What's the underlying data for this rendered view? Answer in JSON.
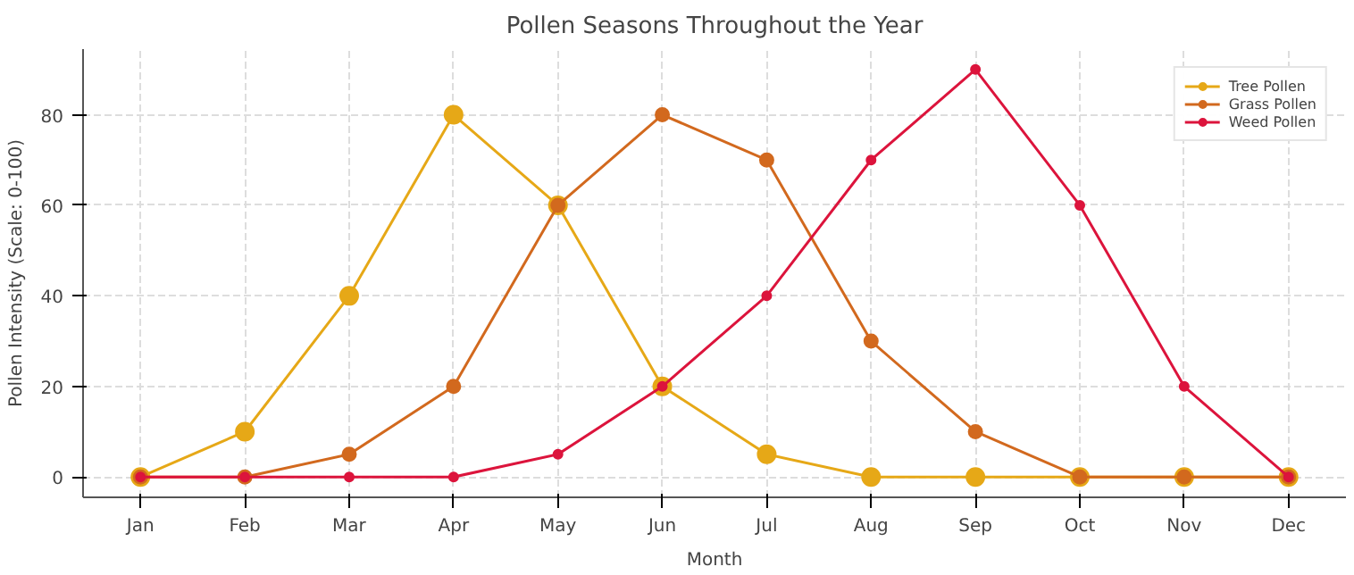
{
  "chart_data": {
    "type": "line",
    "title": "Pollen Seasons Throughout the Year",
    "xlabel": "Month",
    "ylabel": "Pollen Intensity (Scale: 0-100)",
    "categories": [
      "Jan",
      "Feb",
      "Mar",
      "Apr",
      "May",
      "Jun",
      "Jul",
      "Aug",
      "Sep",
      "Oct",
      "Nov",
      "Dec"
    ],
    "series": [
      {
        "name": "Tree Pollen",
        "color": "#e6a817",
        "values": [
          0,
          10,
          40,
          80,
          60,
          20,
          5,
          0,
          0,
          0,
          0,
          0
        ]
      },
      {
        "name": "Grass Pollen",
        "color": "#d2691e",
        "values": [
          0,
          0,
          5,
          20,
          60,
          80,
          70,
          30,
          10,
          0,
          0,
          0
        ]
      },
      {
        "name": "Weed Pollen",
        "color": "#dc143c",
        "values": [
          0,
          0,
          0,
          0,
          5,
          20,
          40,
          70,
          90,
          60,
          20,
          0
        ]
      }
    ],
    "ylim": [
      -4.5,
      94.5
    ],
    "yticks": [
      0,
      20,
      40,
      60,
      80
    ],
    "grid": true,
    "legend": "top right",
    "marker": "circle",
    "line_style": "solid"
  }
}
